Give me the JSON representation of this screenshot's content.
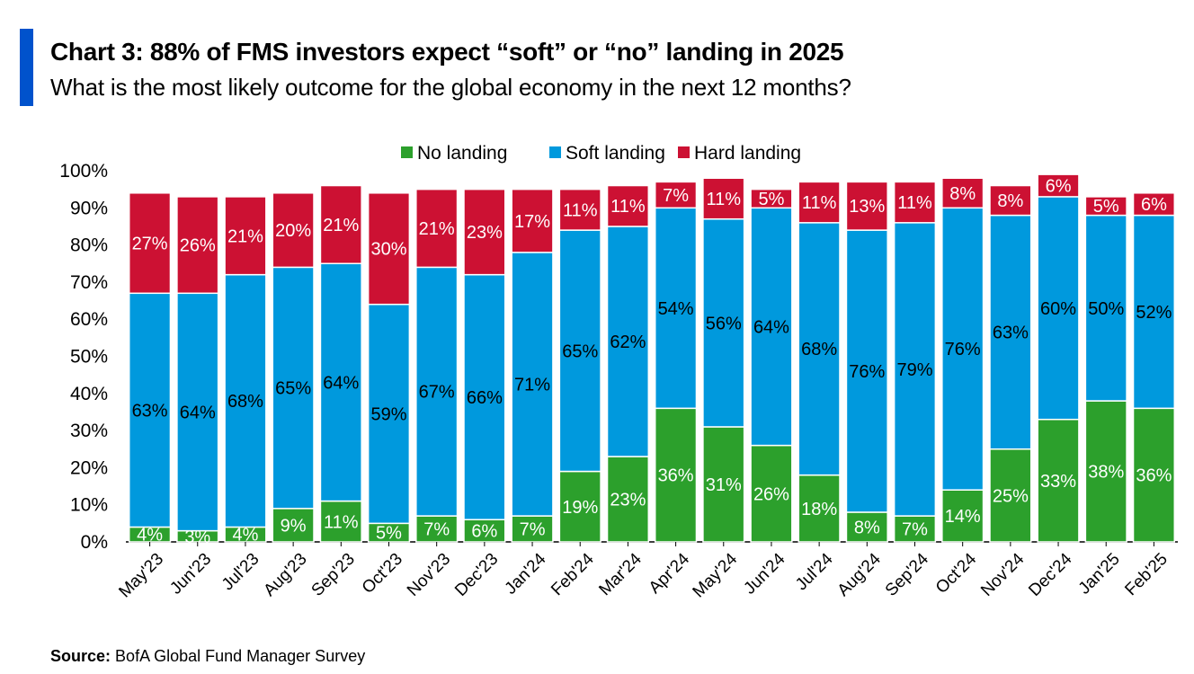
{
  "header": {
    "title": "Chart 3: 88% of FMS investors expect “soft” or “no” landing in 2025",
    "subtitle": "What is the most likely outcome for the global economy in the next 12 months?"
  },
  "footer": {
    "source_label": "Source:",
    "source_text": "BofA Global Fund Manager Survey"
  },
  "colors": {
    "no_landing": "#2ca02c",
    "soft_landing": "#0099dd",
    "hard_landing": "#cc1133",
    "title_bar": "#0052cc"
  },
  "chart_data": {
    "type": "bar",
    "stacked": true,
    "categories": [
      "May'23",
      "Jun'23",
      "Jul'23",
      "Aug'23",
      "Sep'23",
      "Oct'23",
      "Nov'23",
      "Dec'23",
      "Jan'24",
      "Feb'24",
      "Mar'24",
      "Apr'24",
      "May'24",
      "Jun'24",
      "Jul'24",
      "Aug'24",
      "Sep'24",
      "Oct'24",
      "Nov'24",
      "Dec'24",
      "Jan'25",
      "Feb'25"
    ],
    "series": [
      {
        "name": "No landing",
        "values": [
          4,
          3,
          4,
          9,
          11,
          5,
          7,
          6,
          7,
          19,
          23,
          36,
          31,
          26,
          18,
          8,
          7,
          14,
          25,
          33,
          38,
          36
        ]
      },
      {
        "name": "Soft landing",
        "values": [
          63,
          64,
          68,
          65,
          64,
          59,
          67,
          66,
          71,
          65,
          62,
          54,
          56,
          64,
          68,
          76,
          79,
          76,
          63,
          60,
          50,
          52
        ]
      },
      {
        "name": "Hard landing",
        "values": [
          27,
          26,
          21,
          20,
          21,
          30,
          21,
          23,
          17,
          11,
          11,
          7,
          11,
          5,
          11,
          13,
          11,
          8,
          8,
          6,
          5,
          6
        ]
      }
    ],
    "ylim": [
      0,
      100
    ],
    "yticks": [
      "0%",
      "10%",
      "20%",
      "30%",
      "40%",
      "50%",
      "60%",
      "70%",
      "80%",
      "90%",
      "100%"
    ],
    "legend_position": "top",
    "grid": false
  }
}
